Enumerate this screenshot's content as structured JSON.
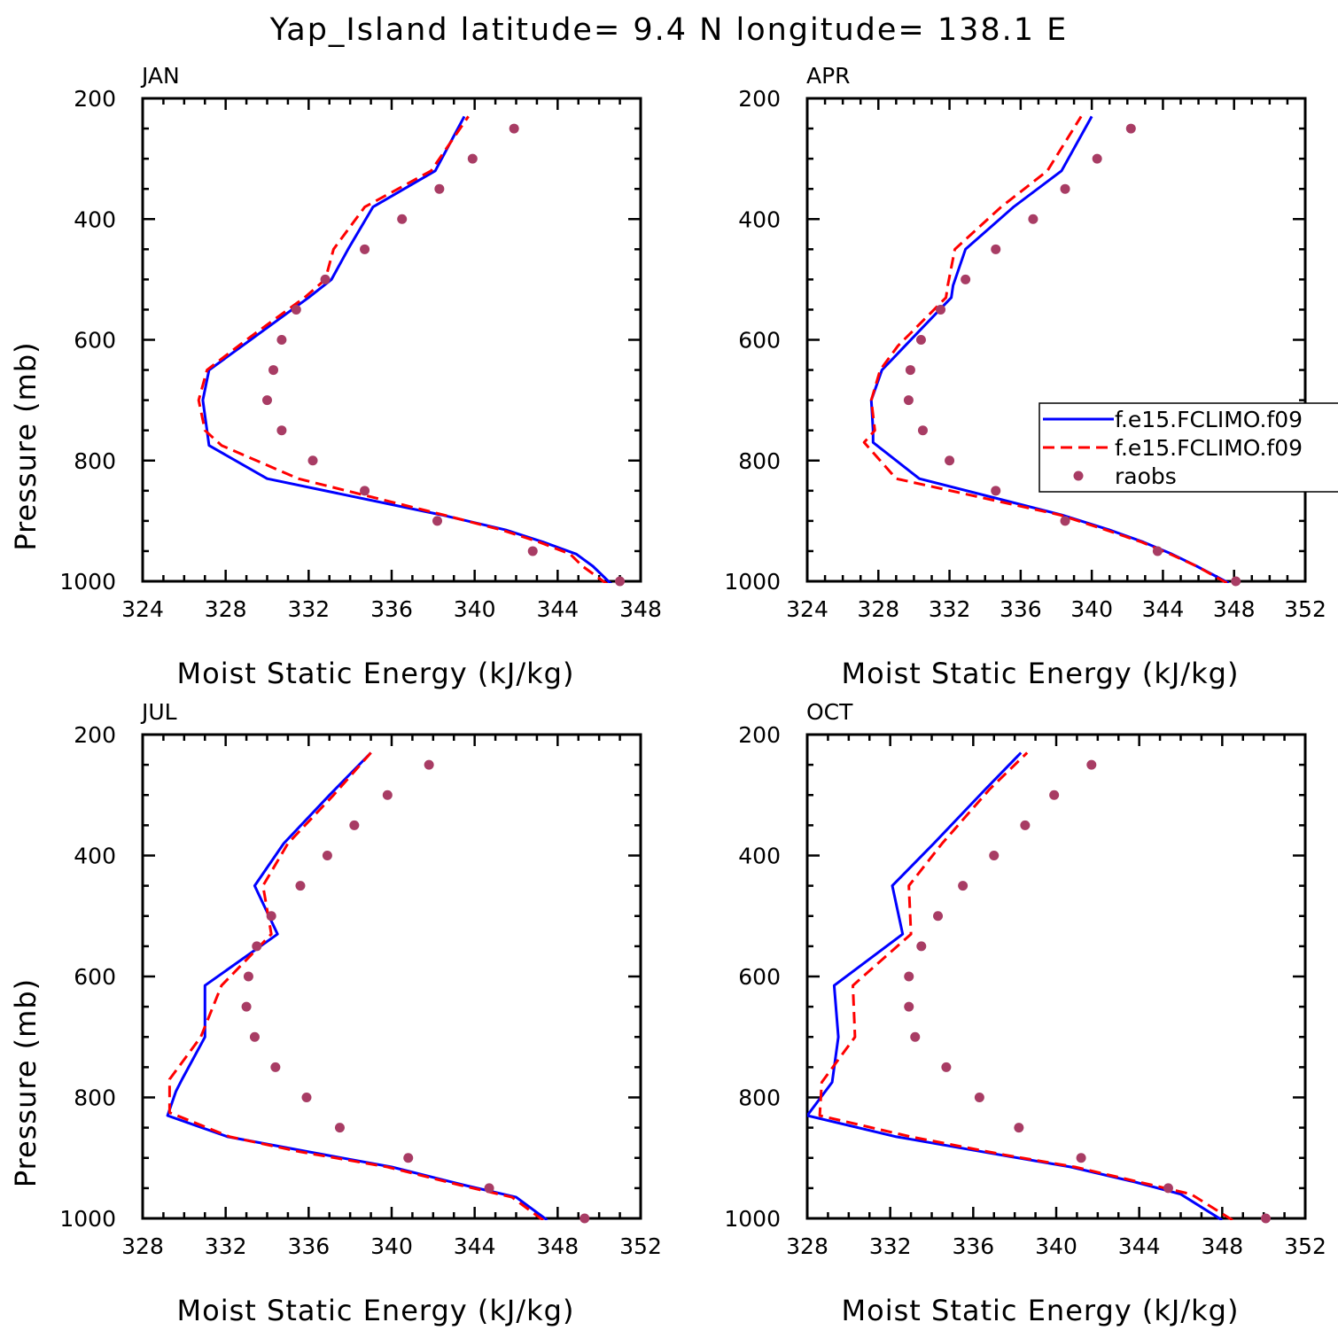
{
  "figure": {
    "title": "Yap_Island  latitude= 9.4 N longitude= 138.1 E"
  },
  "legend": {
    "entries": [
      {
        "label": "f.e15.FCLIMO.f09",
        "color": "#0000ff",
        "style": "solid"
      },
      {
        "label": "f.e15.FCLIMO.f09",
        "color": "#ff0000",
        "style": "dashed"
      },
      {
        "label": "raobs",
        "color": "#a83c64",
        "style": "dots"
      }
    ]
  },
  "colors": {
    "model_1": "#0000ff",
    "model_2": "#ff0000",
    "raobs": "#a83c64"
  },
  "chart_data": [
    {
      "type": "line",
      "title": "JAN",
      "xlabel": "Moist Static Energy (kJ/kg)",
      "ylabel": "Pressure (mb)",
      "xlim": [
        324,
        348
      ],
      "ylim": [
        1000,
        200
      ],
      "xticks": [
        324,
        328,
        332,
        336,
        340,
        344,
        348
      ],
      "yticks": [
        200,
        400,
        600,
        800,
        1000
      ],
      "series": [
        {
          "name": "f.e15.FCLIMO.f09",
          "x": [
            346.6,
            345.7,
            344.9,
            343.3,
            341.5,
            338.4,
            330.0,
            327.2,
            327.1,
            326.9,
            327.2,
            329.2,
            332.0,
            333.1,
            333.9,
            335.1,
            338.1,
            339.5
          ],
          "y": [
            1005,
            975,
            955,
            935,
            915,
            890,
            830,
            775,
            750,
            700,
            650,
            600,
            530,
            500,
            450,
            380,
            320,
            230
          ]
        },
        {
          "name": "f.e15.FCLIMO.f09",
          "x": [
            346.4,
            345.2,
            344.6,
            343.1,
            341.3,
            338.5,
            331.5,
            327.8,
            327.0,
            326.7,
            327.1,
            329.0,
            331.8,
            332.8,
            333.2,
            334.7,
            337.9,
            339.7
          ],
          "y": [
            1005,
            975,
            955,
            935,
            915,
            890,
            830,
            775,
            750,
            700,
            650,
            600,
            530,
            500,
            450,
            380,
            320,
            230
          ]
        },
        {
          "name": "raobs",
          "x": [
            347.0,
            342.8,
            338.2,
            334.7,
            332.2,
            330.7,
            330.0,
            330.3,
            330.7,
            331.4,
            332.8,
            334.7,
            336.5,
            338.3,
            339.9,
            341.9
          ],
          "y": [
            1000,
            950,
            900,
            850,
            800,
            750,
            700,
            650,
            600,
            550,
            500,
            450,
            400,
            350,
            300,
            250
          ]
        }
      ]
    },
    {
      "type": "line",
      "title": "APR",
      "xlabel": "Moist Static Energy (kJ/kg)",
      "ylabel": "",
      "xlim": [
        324,
        352
      ],
      "ylim": [
        1000,
        200
      ],
      "xticks": [
        324,
        328,
        332,
        336,
        340,
        344,
        348,
        352
      ],
      "yticks": [
        200,
        400,
        600,
        800,
        1000
      ],
      "series": [
        {
          "name": "f.e15.FCLIMO.f09",
          "x": [
            347.7,
            345.9,
            344.5,
            342.9,
            341.0,
            338.3,
            330.3,
            327.7,
            327.7,
            327.6,
            328.2,
            329.5,
            332.1,
            332.2,
            332.9,
            335.6,
            338.3,
            340.0
          ],
          "y": [
            1003,
            975,
            955,
            935,
            915,
            890,
            830,
            770,
            750,
            700,
            650,
            610,
            530,
            510,
            450,
            380,
            320,
            230
          ]
        },
        {
          "name": "f.e15.FCLIMO.f09",
          "x": [
            347.6,
            345.9,
            344.4,
            342.8,
            340.8,
            338.2,
            329.0,
            327.2,
            327.8,
            327.6,
            328.1,
            329.1,
            331.8,
            331.9,
            332.3,
            334.9,
            337.5,
            339.4
          ],
          "y": [
            1003,
            975,
            955,
            935,
            915,
            890,
            830,
            770,
            750,
            700,
            650,
            610,
            530,
            510,
            450,
            380,
            320,
            230
          ]
        },
        {
          "name": "raobs",
          "x": [
            348.1,
            343.7,
            338.5,
            334.6,
            332.0,
            330.5,
            329.7,
            329.8,
            330.4,
            331.5,
            332.9,
            334.6,
            336.7,
            338.5,
            340.3,
            342.2
          ],
          "y": [
            1000,
            950,
            900,
            850,
            800,
            750,
            700,
            650,
            600,
            550,
            500,
            450,
            400,
            350,
            300,
            250
          ]
        }
      ]
    },
    {
      "type": "line",
      "title": "JUL",
      "xlabel": "Moist Static Energy (kJ/kg)",
      "ylabel": "Pressure (mb)",
      "xlim": [
        328,
        352
      ],
      "ylim": [
        1000,
        200
      ],
      "xticks": [
        328,
        332,
        336,
        340,
        344,
        348,
        352
      ],
      "yticks": [
        200,
        400,
        600,
        800,
        1000
      ],
      "series": [
        {
          "name": "f.e15.FCLIMO.f09",
          "x": [
            347.5,
            346.0,
            343.5,
            340.0,
            336.0,
            332.1,
            329.2,
            329.6,
            329.9,
            331.0,
            331.0,
            334.5,
            333.4,
            334.8,
            337.0,
            339.0
          ],
          "y": [
            1003,
            965,
            945,
            915,
            890,
            865,
            830,
            790,
            770,
            700,
            615,
            530,
            450,
            380,
            300,
            230
          ]
        },
        {
          "name": "f.e15.FCLIMO.f09",
          "x": [
            347.3,
            345.8,
            343.3,
            339.8,
            335.6,
            332.2,
            329.3,
            329.3,
            329.3,
            330.8,
            331.8,
            334.2,
            333.8,
            335.0,
            337.2,
            339.0
          ],
          "y": [
            1003,
            965,
            945,
            915,
            890,
            865,
            825,
            790,
            770,
            700,
            615,
            530,
            450,
            380,
            300,
            230
          ]
        },
        {
          "name": "raobs",
          "x": [
            349.3,
            344.7,
            340.8,
            337.5,
            335.9,
            334.4,
            333.4,
            333.0,
            333.1,
            333.5,
            334.2,
            335.6,
            336.9,
            338.2,
            339.8,
            341.8
          ],
          "y": [
            1000,
            950,
            900,
            850,
            800,
            750,
            700,
            650,
            600,
            550,
            500,
            450,
            400,
            350,
            300,
            250
          ]
        }
      ]
    },
    {
      "type": "line",
      "title": "OCT",
      "xlabel": "Moist Static Energy (kJ/kg)",
      "ylabel": "",
      "xlim": [
        328,
        352
      ],
      "ylim": [
        1000,
        200
      ],
      "xticks": [
        328,
        332,
        336,
        340,
        344,
        348,
        352
      ],
      "yticks": [
        200,
        400,
        600,
        800,
        1000
      ],
      "series": [
        {
          "name": "f.e15.FCLIMO.f09",
          "x": [
            348.0,
            346.0,
            343.8,
            340.7,
            337.3,
            332.3,
            328.0,
            329.2,
            329.5,
            329.3,
            332.6,
            332.1,
            334.1,
            336.6,
            338.3
          ],
          "y": [
            1003,
            960,
            940,
            915,
            895,
            865,
            830,
            775,
            700,
            615,
            530,
            450,
            380,
            290,
            230
          ]
        },
        {
          "name": "f.e15.FCLIMO.f09",
          "x": [
            348.5,
            346.5,
            344.0,
            340.9,
            337.5,
            333.0,
            328.6,
            328.7,
            330.3,
            330.2,
            333.0,
            332.9,
            334.5,
            336.8,
            338.6
          ],
          "y": [
            1003,
            960,
            940,
            915,
            895,
            865,
            830,
            775,
            700,
            615,
            530,
            450,
            380,
            290,
            230
          ]
        },
        {
          "name": "raobs",
          "x": [
            350.1,
            345.4,
            341.2,
            338.2,
            336.3,
            334.7,
            333.2,
            332.9,
            332.9,
            333.5,
            334.3,
            335.5,
            337.0,
            338.5,
            339.9,
            341.7
          ],
          "y": [
            1000,
            950,
            900,
            850,
            800,
            750,
            700,
            650,
            600,
            550,
            500,
            450,
            400,
            350,
            300,
            250
          ]
        }
      ]
    }
  ]
}
